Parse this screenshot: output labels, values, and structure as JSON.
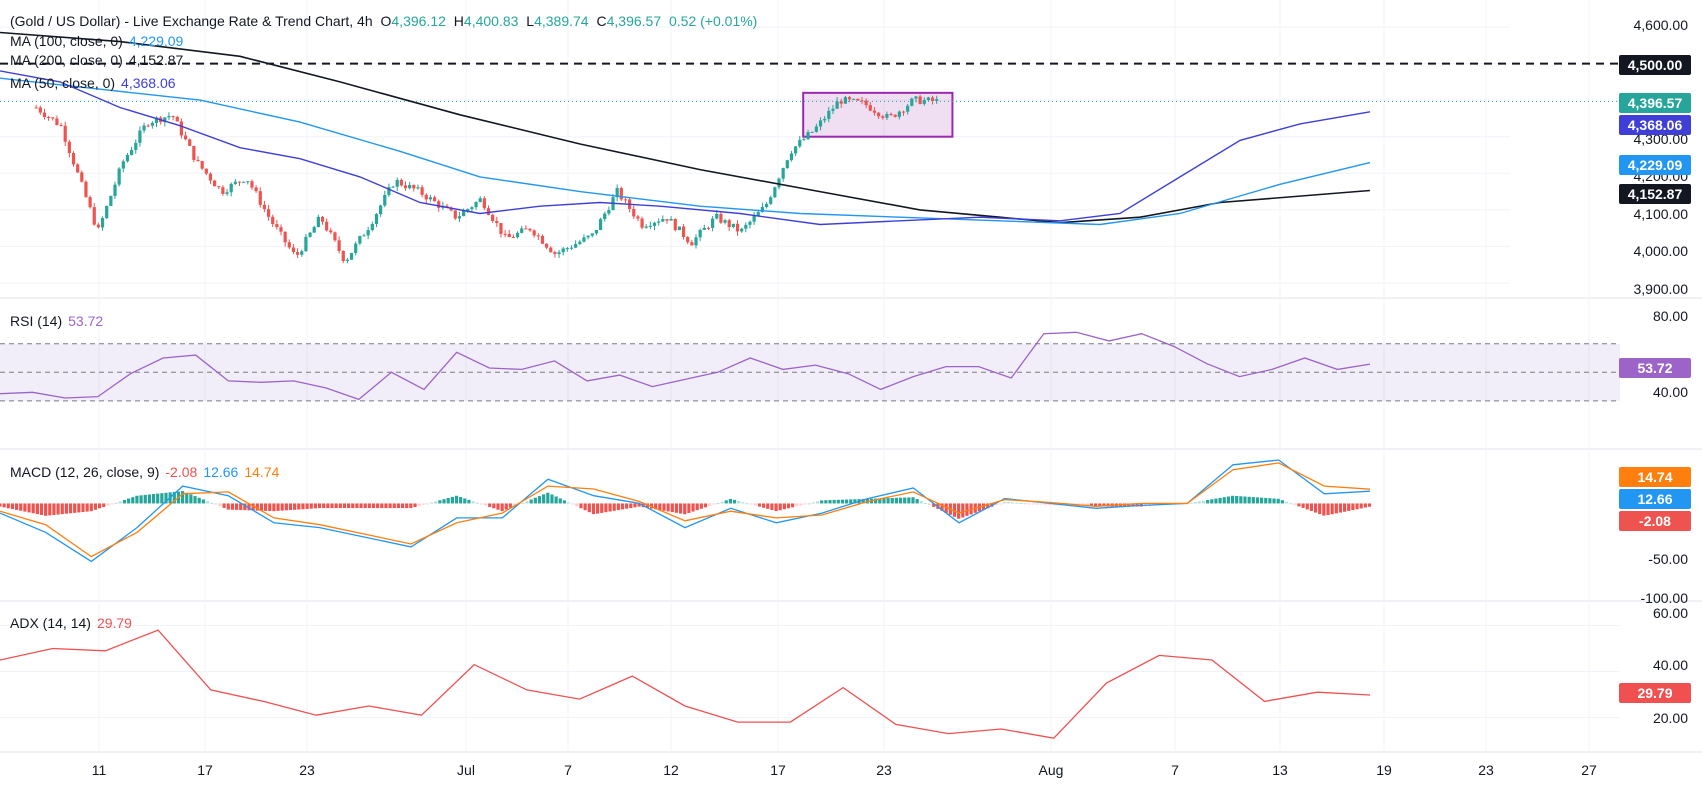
{
  "header": {
    "title": "(Gold / US Dollar) - Live Exchange Rate & Trend Chart, 4h",
    "o_label": "O",
    "open": "4,396.12",
    "h_label": "H",
    "high": "4,400.83",
    "l_label": "L",
    "low": "4,389.74",
    "c_label": "C",
    "close": "4,396.57",
    "change": "0.52 (+0.01%)"
  },
  "legend": {
    "ma100_label": "MA (100, close, 0)",
    "ma100_value": "4,229.09",
    "ma200_label": "MA (200, close, 0)",
    "ma200_value": "4,152.87",
    "ma50_label": "MA (50, close, 0)",
    "ma50_value": "4,368.06",
    "rsi_label": "RSI (14)",
    "rsi_value": "53.72",
    "macd_label": "MACD (12, 26, close, 9)",
    "macd_hist": "-2.08",
    "macd_line": "12.66",
    "macd_signal": "14.74",
    "adx_label": "ADX (14, 14)",
    "adx_value": "29.79"
  },
  "price_tags": {
    "level": "4,500.00",
    "last": "4,396.57",
    "ma50": "4,368.06",
    "ma100": "4,229.09",
    "ma200": "4,152.87",
    "rsi": "53.72",
    "macd_signal": "14.74",
    "macd_line": "12.66",
    "macd_hist": "-2.08",
    "adx": "29.79"
  },
  "axes": {
    "price_ticks": [
      "4,600.00",
      "4,300.00",
      "4,200.00",
      "4,100.00",
      "4,000.00",
      "3,900.00"
    ],
    "rsi_ticks": [
      "80.00",
      "40.00"
    ],
    "macd_ticks": [
      "-50.00",
      "-100.00"
    ],
    "adx_ticks": [
      "60.00",
      "40.00",
      "20.00"
    ],
    "x_ticks": [
      "11",
      "17",
      "23",
      "Jul",
      "7",
      "12",
      "17",
      "23",
      "Aug",
      "7",
      "13",
      "19",
      "23",
      "27"
    ]
  },
  "colors": {
    "up": "#26a69a",
    "down": "#ef5350",
    "ma50": "#3f3fd8",
    "ma100": "#2196f3",
    "ma200": "#131722",
    "rsi": "#9c64c8",
    "macd": "#2196f3",
    "signal": "#ff7f0e",
    "adx": "#f05050",
    "box": "#9c27b0"
  },
  "chart_data": [
    {
      "type": "candlestick",
      "timeframe": "4h",
      "x_range": [
        "June",
        "Aug 27"
      ],
      "ylim": [
        3900,
        4600
      ],
      "key_levels": {
        "horizontal_resistance": 4500
      },
      "consolidation_box": {
        "from": "Aug 9",
        "to": "Aug 18",
        "low": 4300,
        "high": 4420
      },
      "price_path": [
        {
          "date": "Jun 6",
          "close": 4380
        },
        {
          "date": "Jun 8",
          "close": 4330
        },
        {
          "date": "Jun 11",
          "close": 4040
        },
        {
          "date": "Jun 13",
          "close": 4230
        },
        {
          "date": "Jun 15",
          "close": 4340
        },
        {
          "date": "Jun 17",
          "close": 4360
        },
        {
          "date": "Jun 19",
          "close": 4230
        },
        {
          "date": "Jun 21",
          "close": 4150
        },
        {
          "date": "Jun 23",
          "close": 4190
        },
        {
          "date": "Jun 25",
          "close": 4070
        },
        {
          "date": "Jun 27",
          "close": 3970
        },
        {
          "date": "Jun 29",
          "close": 4080
        },
        {
          "date": "Jul 1",
          "close": 3960
        },
        {
          "date": "Jul 3",
          "close": 4060
        },
        {
          "date": "Jul 5",
          "close": 4180
        },
        {
          "date": "Jul 7",
          "close": 4150
        },
        {
          "date": "Jul 10",
          "close": 4080
        },
        {
          "date": "Jul 12",
          "close": 4130
        },
        {
          "date": "Jul 14",
          "close": 4020
        },
        {
          "date": "Jul 16",
          "close": 4050
        },
        {
          "date": "Jul 18",
          "close": 3980
        },
        {
          "date": "Jul 21",
          "close": 4030
        },
        {
          "date": "Jul 23",
          "close": 4150
        },
        {
          "date": "Jul 25",
          "close": 4060
        },
        {
          "date": "Jul 27",
          "close": 4080
        },
        {
          "date": "Jul 29",
          "close": 4010
        },
        {
          "date": "Jul 31",
          "close": 4080
        },
        {
          "date": "Aug 2",
          "close": 4040
        },
        {
          "date": "Aug 4",
          "close": 4110
        },
        {
          "date": "Aug 6",
          "close": 4260
        },
        {
          "date": "Aug 8",
          "close": 4320
        },
        {
          "date": "Aug 10",
          "close": 4400
        },
        {
          "date": "Aug 12",
          "close": 4390
        },
        {
          "date": "Aug 14",
          "close": 4350
        },
        {
          "date": "Aug 16",
          "close": 4400
        },
        {
          "date": "Aug 18",
          "close": 4396.57
        }
      ],
      "series": [
        {
          "name": "MA (50, close, 0)",
          "last": 4368.06
        },
        {
          "name": "MA (100, close, 0)",
          "last": 4229.09
        },
        {
          "name": "MA (200, close, 0)",
          "last": 4152.87
        }
      ]
    },
    {
      "type": "line",
      "title": "RSI (14)",
      "ylim": [
        25,
        88
      ],
      "bands": [
        70,
        50,
        30
      ],
      "values": [
        33,
        38,
        30,
        35,
        47,
        62,
        60,
        46,
        41,
        46,
        37,
        33,
        48,
        40,
        62,
        55,
        50,
        60,
        42,
        50,
        38,
        47,
        48,
        62,
        50,
        57,
        47,
        40,
        45,
        56,
        52,
        48,
        75,
        80,
        70,
        79,
        66,
        58,
        45,
        54,
        58,
        54,
        53.72
      ]
    },
    {
      "type": "line",
      "title": "MACD (12, 26, close, 9)",
      "ylim": [
        -100,
        45
      ],
      "series": [
        {
          "name": "MACD",
          "last": 12.66
        },
        {
          "name": "Signal",
          "last": 14.74
        },
        {
          "name": "Histogram",
          "last": -2.08
        }
      ],
      "macd_line": [
        -10,
        -30,
        -60,
        -25,
        18,
        8,
        -20,
        -25,
        -35,
        -45,
        -15,
        -15,
        25,
        8,
        0,
        -25,
        -5,
        -20,
        -10,
        5,
        16,
        -20,
        5,
        0,
        -5,
        -2,
        0,
        40,
        45,
        10,
        12.66
      ],
      "signal_line": [
        -8,
        -22,
        -55,
        -30,
        10,
        12,
        -15,
        -22,
        -32,
        -42,
        -20,
        -10,
        18,
        15,
        2,
        -18,
        -8,
        -15,
        -12,
        2,
        12,
        -10,
        4,
        1,
        -3,
        0,
        0,
        35,
        42,
        18,
        14.74
      ]
    },
    {
      "type": "line",
      "title": "ADX (14, 14)",
      "ylim": [
        5,
        65
      ],
      "values": [
        45,
        50,
        49,
        58,
        32,
        27,
        21,
        25,
        21,
        43,
        32,
        28,
        38,
        25,
        18,
        18,
        33,
        17,
        13,
        15,
        11,
        35,
        47,
        45,
        27,
        31,
        29.79
      ]
    }
  ]
}
